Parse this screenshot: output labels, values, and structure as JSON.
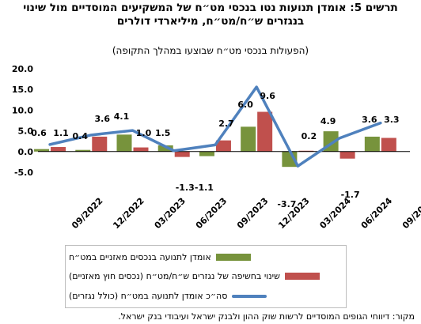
{
  "title": "תרשים 5: אומדן תנועות נטו בנכסי מט״ח של המשקיעים המוסדיים מול שינוי בנגזרים ש״ח/מט״ח, מיליארדי דולרים",
  "subtitle": "(הפעולות בנכסי מט״ח שבוצעו במהלך התקופה)",
  "source": "מקור: דיווחי הגופים המוסדיים לרשות שוק ההון ולבנק ישראל ועיבודי בנק ישראל.",
  "chart_data": {
    "type": "bar",
    "categories": [
      "",
      "09/2022",
      "",
      "12/2022",
      "",
      "03/2023",
      "",
      "06/2023",
      "",
      "09/2023",
      "",
      "12/2023",
      "",
      "03/2024",
      "",
      "06/2024",
      "",
      "09/2024"
    ],
    "series": [
      {
        "name": "אומדן לתנועה בנכסים מאזניים במט״ח",
        "type": "bar",
        "color": "#77933c",
        "values": [
          0.6,
          null,
          0.4,
          null,
          4.1,
          null,
          1.5,
          null,
          -1.1,
          null,
          6.0,
          null,
          -3.7,
          null,
          4.9,
          null,
          3.6,
          null
        ]
      },
      {
        "name": "שינוי בחשיפה של נגזרים ש״ח/מט״ח (נכסים חוץ מאזניים)",
        "type": "bar",
        "color": "#c0504d",
        "values": [
          1.1,
          null,
          3.6,
          null,
          1.0,
          null,
          -1.3,
          null,
          2.7,
          null,
          9.6,
          null,
          0.2,
          null,
          -1.7,
          null,
          3.3,
          null
        ]
      },
      {
        "name": "סה״כ אומדן לתנועה במט״ח (כולל נגזרים)",
        "type": "line",
        "color": "#4f81bd",
        "values": [
          1.7,
          null,
          4.0,
          null,
          5.1,
          null,
          0.2,
          null,
          1.6,
          null,
          15.6,
          null,
          -3.5,
          null,
          3.2,
          null,
          6.9,
          null
        ]
      }
    ],
    "data_labels": [
      {
        "index": 0,
        "text": "0.6"
      },
      {
        "index": 0,
        "text": "1.1"
      },
      {
        "index": 2,
        "text": "0.4"
      },
      {
        "index": 2,
        "text": "3.6"
      },
      {
        "index": 4,
        "text": "4.1"
      },
      {
        "index": 4,
        "text": "1.0"
      },
      {
        "index": 6,
        "text": "1.5"
      },
      {
        "index": 6,
        "text": "-1.3"
      },
      {
        "index": 8,
        "text": "-1.1"
      },
      {
        "index": 8,
        "text": "2.7"
      },
      {
        "index": 10,
        "text": "6.0"
      },
      {
        "index": 10,
        "text": "9.6"
      },
      {
        "index": 12,
        "text": "-3.7"
      },
      {
        "index": 12,
        "text": "0.2"
      },
      {
        "index": 14,
        "text": "4.9"
      },
      {
        "index": 14,
        "text": "-1.7"
      },
      {
        "index": 16,
        "text": "3.6"
      },
      {
        "index": 16,
        "text": "3.3"
      }
    ],
    "yticks": [
      "20.0",
      "15.0",
      "10.0",
      "5.0",
      "0.0",
      "-5.0"
    ],
    "ylim": [
      -5,
      20
    ],
    "grid": false,
    "legend_position": "bottom"
  }
}
